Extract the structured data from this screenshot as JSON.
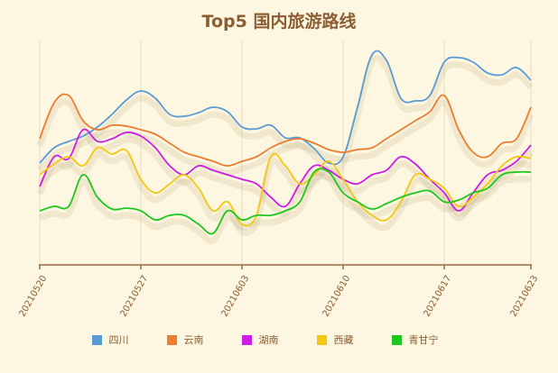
{
  "title": "Top5 国内旅游路线",
  "chart_data": {
    "type": "line",
    "title": "Top5 国内旅游路线",
    "xlabel": "",
    "ylabel": "",
    "grid": "vertical at labeled ticks",
    "legend_position": "bottom",
    "x_tick_labels": [
      "20210520",
      "20210527",
      "20210603",
      "20210610",
      "20210617",
      "20210623"
    ],
    "x_start": "20210520",
    "x_end": "20210623",
    "note": "No y-axis shown; values are relative index estimates (0 = x-axis baseline, ~250 = top).",
    "series": [
      {
        "name": "四川",
        "color": "#5b9bd5",
        "values": [
          113,
          130,
          137,
          143,
          153,
          167,
          183,
          193,
          185,
          167,
          165,
          169,
          175,
          170,
          153,
          151,
          155,
          141,
          141,
          129,
          113,
          120,
          175,
          233,
          227,
          185,
          182,
          188,
          225,
          230,
          225,
          213,
          211,
          219,
          205
        ]
      },
      {
        "name": "云南",
        "color": "#ed7d31",
        "values": [
          140,
          180,
          188,
          160,
          150,
          155,
          154,
          150,
          145,
          135,
          125,
          120,
          115,
          110,
          115,
          120,
          130,
          137,
          140,
          135,
          128,
          125,
          128,
          130,
          140,
          150,
          160,
          170,
          188,
          150,
          125,
          120,
          135,
          140,
          175
        ]
      },
      {
        "name": "湖南",
        "color": "#cc1ee6",
        "values": [
          87,
          120,
          118,
          150,
          137,
          140,
          147,
          143,
          130,
          110,
          100,
          110,
          105,
          100,
          95,
          90,
          75,
          65,
          90,
          110,
          105,
          95,
          90,
          100,
          105,
          120,
          112,
          95,
          80,
          60,
          80,
          100,
          105,
          115,
          133
        ]
      },
      {
        "name": "西藏",
        "color": "#f2c811",
        "values": [
          100,
          112,
          120,
          110,
          130,
          123,
          127,
          95,
          80,
          90,
          100,
          85,
          60,
          70,
          45,
          55,
          120,
          110,
          90,
          100,
          115,
          95,
          70,
          55,
          50,
          70,
          100,
          95,
          85,
          65,
          75,
          90,
          110,
          120,
          118
        ]
      },
      {
        "name": "青甘宁",
        "color": "#1ec81e",
        "values": [
          60,
          65,
          65,
          100,
          75,
          62,
          63,
          60,
          50,
          55,
          55,
          45,
          35,
          60,
          50,
          55,
          55,
          60,
          70,
          103,
          103,
          80,
          70,
          62,
          68,
          75,
          80,
          82,
          70,
          72,
          80,
          85,
          100,
          103,
          103
        ]
      }
    ]
  },
  "legend": [
    {
      "label": "四川",
      "color": "#5b9bd5"
    },
    {
      "label": "云南",
      "color": "#ed7d31"
    },
    {
      "label": "湖南",
      "color": "#cc1ee6"
    },
    {
      "label": "西藏",
      "color": "#f2c811"
    },
    {
      "label": "青甘宁",
      "color": "#1ec81e"
    }
  ]
}
